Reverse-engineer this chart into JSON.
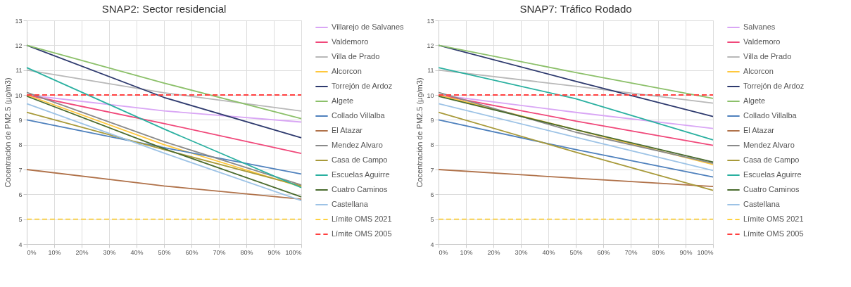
{
  "chart_data": [
    {
      "type": "line",
      "title": "SNAP2: Sector residencial",
      "ylabel": "Cocentración de PM2.5 (µg/m3)",
      "x": [
        0,
        50,
        100
      ],
      "xlim": [
        0,
        100
      ],
      "xticks": [
        {
          "value": 0,
          "label": "0%"
        },
        {
          "value": 10,
          "label": "10%"
        },
        {
          "value": 20,
          "label": "20%"
        },
        {
          "value": 30,
          "label": "30%"
        },
        {
          "value": 40,
          "label": "40%"
        },
        {
          "value": 50,
          "label": "50%"
        },
        {
          "value": 60,
          "label": "60%"
        },
        {
          "value": 70,
          "label": "70%"
        },
        {
          "value": 80,
          "label": "80%"
        },
        {
          "value": 90,
          "label": "90%"
        },
        {
          "value": 100,
          "label": "100%"
        }
      ],
      "ylim": [
        4,
        13
      ],
      "yticks": [
        4,
        5,
        6,
        7,
        8,
        9,
        10,
        11,
        12,
        13
      ],
      "grid": true,
      "legend": "right",
      "line_style": "solid",
      "series": [
        {
          "name": "Villarejo de Salvanes",
          "color": "#d9a6f5",
          "values": [
            10.0,
            9.36,
            8.91
          ]
        },
        {
          "name": "Valdemoro",
          "color": "#f0487a",
          "values": [
            10.0,
            8.85,
            7.65
          ]
        },
        {
          "name": "Villa de Prado",
          "color": "#b8b8b8",
          "values": [
            11.0,
            10.09,
            9.35
          ]
        },
        {
          "name": "Alcorcon",
          "color": "#ffc83d",
          "values": [
            10.0,
            8.0,
            6.3
          ]
        },
        {
          "name": "Torrejón de Ardoz",
          "color": "#2e3a6e",
          "values": [
            12.0,
            9.9,
            8.28
          ]
        },
        {
          "name": "Algete",
          "color": "#8cc06a",
          "values": [
            12.0,
            10.48,
            9.05
          ]
        },
        {
          "name": "Collado Villalba",
          "color": "#4f81bd",
          "values": [
            9.0,
            7.88,
            6.82
          ]
        },
        {
          "name": "El Atazar",
          "color": "#b0724a",
          "values": [
            7.0,
            6.34,
            5.81
          ]
        },
        {
          "name": "Mendez Alvaro",
          "color": "#8a8a8a",
          "values": [
            10.1,
            8.12,
            6.38
          ]
        },
        {
          "name": "Casa de Campo",
          "color": "#a89a3a",
          "values": [
            9.3,
            7.8,
            6.34
          ]
        },
        {
          "name": "Escuelas Aguirre",
          "color": "#2ab0a0",
          "values": [
            11.1,
            8.63,
            6.27
          ]
        },
        {
          "name": "Cuatro Caminos",
          "color": "#4a6b2e",
          "values": [
            9.95,
            7.84,
            5.9
          ]
        },
        {
          "name": "Castellana",
          "color": "#9dc3e6",
          "values": [
            9.65,
            7.66,
            5.75
          ]
        },
        {
          "name": "Límite OMS 2021",
          "color": "#ffd23f",
          "line_style": "dashed",
          "values": [
            5,
            5,
            5
          ]
        },
        {
          "name": "Límite OMS 2005",
          "color": "#ff4040",
          "line_style": "dashed",
          "values": [
            10,
            10,
            10
          ]
        }
      ]
    },
    {
      "type": "line",
      "title": "SNAP7: Tráfico Rodado",
      "ylabel": "Cocentración de PM2.5 (µg/m3)",
      "x": [
        0,
        50,
        100
      ],
      "xlim": [
        0,
        100
      ],
      "xticks": [
        {
          "value": 0,
          "label": "0%"
        },
        {
          "value": 10,
          "label": "10%"
        },
        {
          "value": 20,
          "label": "20%"
        },
        {
          "value": 30,
          "label": "30%"
        },
        {
          "value": 40,
          "label": "40%"
        },
        {
          "value": 50,
          "label": "50%"
        },
        {
          "value": 60,
          "label": "60%"
        },
        {
          "value": 70,
          "label": "70%"
        },
        {
          "value": 80,
          "label": "80%"
        },
        {
          "value": 90,
          "label": "90%"
        },
        {
          "value": 100,
          "label": "100%"
        }
      ],
      "ylim": [
        4,
        13
      ],
      "yticks": [
        4,
        5,
        6,
        7,
        8,
        9,
        10,
        11,
        12,
        13
      ],
      "grid": true,
      "legend": "right",
      "line_style": "solid",
      "series": [
        {
          "name": "Salvanes",
          "color": "#d9a6f5",
          "values": [
            10.0,
            9.3,
            8.65
          ]
        },
        {
          "name": "Valdemoro",
          "color": "#f0487a",
          "values": [
            10.0,
            8.95,
            7.97
          ]
        },
        {
          "name": "Villa de Prado",
          "color": "#b8b8b8",
          "values": [
            11.0,
            10.35,
            9.67
          ]
        },
        {
          "name": "Alcorcon",
          "color": "#ffc83d",
          "values": [
            10.0,
            8.6,
            7.2
          ]
        },
        {
          "name": "Torrejón de Ardoz",
          "color": "#2e3a6e",
          "values": [
            12.0,
            10.55,
            9.13
          ]
        },
        {
          "name": "Algete",
          "color": "#8cc06a",
          "values": [
            12.0,
            10.9,
            9.86
          ]
        },
        {
          "name": "Collado Villalba",
          "color": "#4f81bd",
          "values": [
            9.0,
            7.8,
            6.7
          ]
        },
        {
          "name": "El Atazar",
          "color": "#b0724a",
          "values": [
            7.0,
            6.65,
            6.32
          ]
        },
        {
          "name": "Mendez Alvaro",
          "color": "#8a8a8a",
          "values": [
            10.1,
            8.5,
            7.25
          ]
        },
        {
          "name": "Casa de Campo",
          "color": "#a89a3a",
          "values": [
            9.3,
            7.7,
            6.16
          ]
        },
        {
          "name": "Escuelas Aguirre",
          "color": "#2ab0a0",
          "values": [
            11.1,
            9.85,
            8.19
          ]
        },
        {
          "name": "Cuatro Caminos",
          "color": "#4a6b2e",
          "values": [
            9.95,
            8.6,
            7.3
          ]
        },
        {
          "name": "Castellana",
          "color": "#9dc3e6",
          "values": [
            9.65,
            8.3,
            6.96
          ]
        },
        {
          "name": "Límite OMS 2021",
          "color": "#ffd23f",
          "line_style": "dashed",
          "values": [
            5,
            5,
            5
          ]
        },
        {
          "name": "Límite OMS 2005",
          "color": "#ff4040",
          "line_style": "dashed",
          "values": [
            10,
            10,
            10
          ]
        }
      ]
    }
  ]
}
